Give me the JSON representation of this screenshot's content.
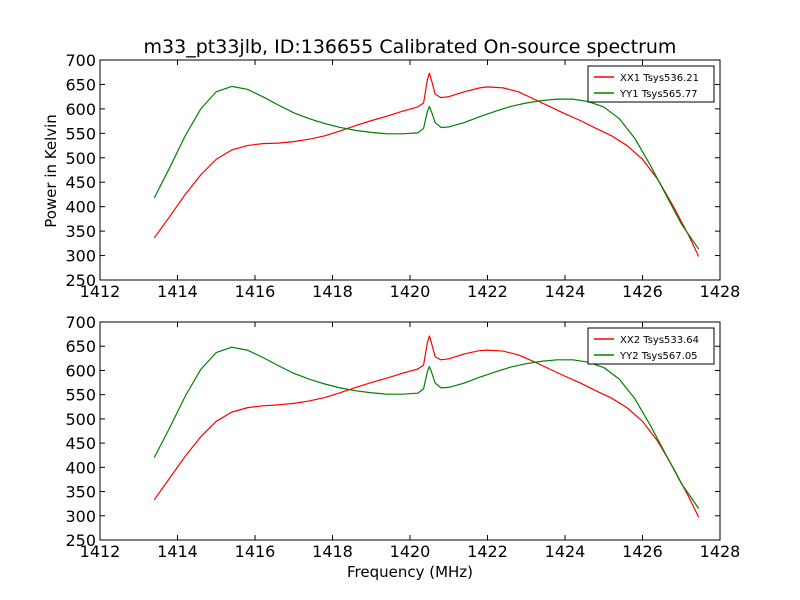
{
  "figure": {
    "title": "m33_pt33jlb, ID:136655 Calibrated On-source spectrum",
    "ylabel_top": "Power in Kelvin",
    "xlabel_bottom": "Frequency (MHz)"
  },
  "chart_data": [
    {
      "type": "line",
      "xlabel": "",
      "ylabel": "Power in Kelvin",
      "xlim": [
        1412,
        1428
      ],
      "ylim": [
        250,
        700
      ],
      "xticks": [
        "1412",
        "1414",
        "1416",
        "1418",
        "1420",
        "1422",
        "1424",
        "1426",
        "1428"
      ],
      "yticks": [
        "250",
        "300",
        "350",
        "400",
        "450",
        "500",
        "550",
        "600",
        "650",
        "700"
      ],
      "legend_position": "top-right",
      "grid": false,
      "series": [
        {
          "name": "XX1 Tsys536.21",
          "color": "#ff0000",
          "points": [
            [
              1413.4,
              336
            ],
            [
              1413.8,
              380
            ],
            [
              1414.2,
              425
            ],
            [
              1414.6,
              465
            ],
            [
              1415.0,
              497
            ],
            [
              1415.4,
              516
            ],
            [
              1415.8,
              525
            ],
            [
              1416.2,
              529
            ],
            [
              1416.6,
              530
            ],
            [
              1417.0,
              533
            ],
            [
              1417.4,
              538
            ],
            [
              1417.8,
              545
            ],
            [
              1418.2,
              555
            ],
            [
              1418.6,
              566
            ],
            [
              1419.0,
              576
            ],
            [
              1419.4,
              585
            ],
            [
              1419.8,
              595
            ],
            [
              1420.2,
              604
            ],
            [
              1420.35,
              612
            ],
            [
              1420.45,
              660
            ],
            [
              1420.5,
              673
            ],
            [
              1420.55,
              660
            ],
            [
              1420.65,
              630
            ],
            [
              1420.8,
              623
            ],
            [
              1421.0,
              625
            ],
            [
              1421.4,
              635
            ],
            [
              1421.8,
              643
            ],
            [
              1422.0,
              645
            ],
            [
              1422.4,
              643
            ],
            [
              1422.8,
              635
            ],
            [
              1423.2,
              620
            ],
            [
              1423.6,
              605
            ],
            [
              1424.0,
              590
            ],
            [
              1424.4,
              576
            ],
            [
              1424.8,
              560
            ],
            [
              1425.2,
              545
            ],
            [
              1425.6,
              525
            ],
            [
              1426.0,
              497
            ],
            [
              1426.4,
              455
            ],
            [
              1426.8,
              400
            ],
            [
              1427.2,
              340
            ],
            [
              1427.45,
              298
            ]
          ]
        },
        {
          "name": "YY1 Tsys565.77",
          "color": "#008000",
          "points": [
            [
              1413.4,
              418
            ],
            [
              1413.8,
              480
            ],
            [
              1414.2,
              545
            ],
            [
              1414.6,
              600
            ],
            [
              1415.0,
              635
            ],
            [
              1415.4,
              646
            ],
            [
              1415.8,
              640
            ],
            [
              1416.2,
              625
            ],
            [
              1416.6,
              608
            ],
            [
              1417.0,
              592
            ],
            [
              1417.4,
              580
            ],
            [
              1417.8,
              570
            ],
            [
              1418.2,
              562
            ],
            [
              1418.6,
              556
            ],
            [
              1419.0,
              552
            ],
            [
              1419.4,
              549
            ],
            [
              1419.8,
              549
            ],
            [
              1420.2,
              551
            ],
            [
              1420.35,
              560
            ],
            [
              1420.45,
              595
            ],
            [
              1420.5,
              605
            ],
            [
              1420.55,
              595
            ],
            [
              1420.65,
              572
            ],
            [
              1420.8,
              562
            ],
            [
              1421.0,
              563
            ],
            [
              1421.4,
              572
            ],
            [
              1421.8,
              584
            ],
            [
              1422.2,
              595
            ],
            [
              1422.6,
              605
            ],
            [
              1423.0,
              612
            ],
            [
              1423.4,
              617
            ],
            [
              1423.8,
              620
            ],
            [
              1424.2,
              620
            ],
            [
              1424.6,
              615
            ],
            [
              1425.0,
              604
            ],
            [
              1425.4,
              580
            ],
            [
              1425.8,
              540
            ],
            [
              1426.2,
              485
            ],
            [
              1426.6,
              425
            ],
            [
              1427.0,
              365
            ],
            [
              1427.45,
              313
            ]
          ]
        }
      ]
    },
    {
      "type": "line",
      "xlabel": "Frequency (MHz)",
      "ylabel": "",
      "xlim": [
        1412,
        1428
      ],
      "ylim": [
        250,
        700
      ],
      "xticks": [
        "1412",
        "1414",
        "1416",
        "1418",
        "1420",
        "1422",
        "1424",
        "1426",
        "1428"
      ],
      "yticks": [
        "250",
        "300",
        "350",
        "400",
        "450",
        "500",
        "550",
        "600",
        "650",
        "700"
      ],
      "legend_position": "top-right",
      "grid": false,
      "series": [
        {
          "name": "XX2 Tsys533.64",
          "color": "#ff0000",
          "points": [
            [
              1413.4,
              333
            ],
            [
              1413.8,
              378
            ],
            [
              1414.2,
              423
            ],
            [
              1414.6,
              463
            ],
            [
              1415.0,
              495
            ],
            [
              1415.4,
              514
            ],
            [
              1415.8,
              523
            ],
            [
              1416.2,
              527
            ],
            [
              1416.6,
              529
            ],
            [
              1417.0,
              532
            ],
            [
              1417.4,
              537
            ],
            [
              1417.8,
              544
            ],
            [
              1418.2,
              554
            ],
            [
              1418.6,
              565
            ],
            [
              1419.0,
              575
            ],
            [
              1419.4,
              584
            ],
            [
              1419.8,
              594
            ],
            [
              1420.2,
              603
            ],
            [
              1420.35,
              611
            ],
            [
              1420.45,
              658
            ],
            [
              1420.5,
              671
            ],
            [
              1420.55,
              658
            ],
            [
              1420.65,
              628
            ],
            [
              1420.8,
              622
            ],
            [
              1421.0,
              624
            ],
            [
              1421.4,
              634
            ],
            [
              1421.8,
              641
            ],
            [
              1422.0,
              642
            ],
            [
              1422.4,
              640
            ],
            [
              1422.8,
              632
            ],
            [
              1423.2,
              618
            ],
            [
              1423.6,
              603
            ],
            [
              1424.0,
              588
            ],
            [
              1424.4,
              574
            ],
            [
              1424.8,
              558
            ],
            [
              1425.2,
              543
            ],
            [
              1425.6,
              523
            ],
            [
              1426.0,
              495
            ],
            [
              1426.4,
              453
            ],
            [
              1426.8,
              398
            ],
            [
              1427.2,
              338
            ],
            [
              1427.45,
              297
            ]
          ]
        },
        {
          "name": "YY2 Tsys567.05",
          "color": "#008000",
          "points": [
            [
              1413.4,
              420
            ],
            [
              1413.8,
              482
            ],
            [
              1414.2,
              547
            ],
            [
              1414.6,
              602
            ],
            [
              1415.0,
              637
            ],
            [
              1415.4,
              648
            ],
            [
              1415.8,
              642
            ],
            [
              1416.2,
              627
            ],
            [
              1416.6,
              610
            ],
            [
              1417.0,
              594
            ],
            [
              1417.4,
              582
            ],
            [
              1417.8,
              572
            ],
            [
              1418.2,
              564
            ],
            [
              1418.6,
              558
            ],
            [
              1419.0,
              554
            ],
            [
              1419.4,
              551
            ],
            [
              1419.8,
              551
            ],
            [
              1420.2,
              553
            ],
            [
              1420.35,
              562
            ],
            [
              1420.45,
              598
            ],
            [
              1420.5,
              608
            ],
            [
              1420.55,
              598
            ],
            [
              1420.65,
              574
            ],
            [
              1420.8,
              564
            ],
            [
              1421.0,
              565
            ],
            [
              1421.4,
              574
            ],
            [
              1421.8,
              586
            ],
            [
              1422.2,
              597
            ],
            [
              1422.6,
              607
            ],
            [
              1423.0,
              614
            ],
            [
              1423.4,
              619
            ],
            [
              1423.8,
              622
            ],
            [
              1424.2,
              622
            ],
            [
              1424.6,
              617
            ],
            [
              1425.0,
              606
            ],
            [
              1425.4,
              582
            ],
            [
              1425.8,
              542
            ],
            [
              1426.2,
              487
            ],
            [
              1426.6,
              427
            ],
            [
              1427.0,
              367
            ],
            [
              1427.45,
              315
            ]
          ]
        }
      ]
    }
  ]
}
